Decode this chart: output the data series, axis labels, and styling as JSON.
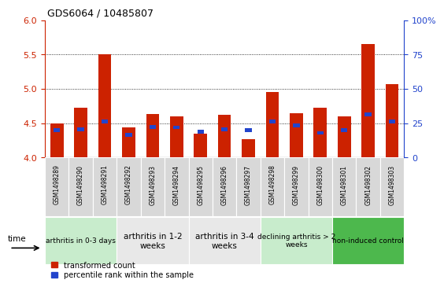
{
  "title": "GDS6064 / 10485807",
  "samples": [
    "GSM1498289",
    "GSM1498290",
    "GSM1498291",
    "GSM1498292",
    "GSM1498293",
    "GSM1498294",
    "GSM1498295",
    "GSM1498296",
    "GSM1498297",
    "GSM1498298",
    "GSM1498299",
    "GSM1498300",
    "GSM1498301",
    "GSM1498302",
    "GSM1498303"
  ],
  "red_values": [
    4.5,
    4.72,
    5.5,
    4.44,
    4.63,
    4.6,
    4.35,
    4.62,
    4.26,
    4.96,
    4.65,
    4.72,
    4.6,
    5.65,
    5.07
  ],
  "blue_values": [
    4.37,
    4.38,
    4.5,
    4.3,
    4.42,
    4.41,
    4.35,
    4.38,
    4.37,
    4.5,
    4.44,
    4.33,
    4.37,
    4.6,
    4.5
  ],
  "ylim_left": [
    4.0,
    6.0
  ],
  "yticks_left": [
    4.0,
    4.5,
    5.0,
    5.5,
    6.0
  ],
  "ylim_right": [
    0,
    100
  ],
  "yticks_right": [
    0,
    25,
    50,
    75,
    100
  ],
  "ytick_labels_right": [
    "0",
    "25",
    "50",
    "75",
    "100%"
  ],
  "groups": [
    {
      "label": "arthritis in 0-3 days",
      "indices": [
        0,
        1,
        2
      ],
      "color": "#c8eccc",
      "fontsize": 6.5
    },
    {
      "label": "arthritis in 1-2\nweeks",
      "indices": [
        3,
        4,
        5
      ],
      "color": "#e8e8e8",
      "fontsize": 7.5
    },
    {
      "label": "arthritis in 3-4\nweeks",
      "indices": [
        6,
        7,
        8
      ],
      "color": "#e8e8e8",
      "fontsize": 7.5
    },
    {
      "label": "declining arthritis > 2\nweeks",
      "indices": [
        9,
        10,
        11
      ],
      "color": "#c8eccc",
      "fontsize": 6.5
    },
    {
      "label": "non-induced control",
      "indices": [
        12,
        13,
        14
      ],
      "color": "#4db84d",
      "fontsize": 6.5
    }
  ],
  "bar_color_red": "#cc2200",
  "bar_color_blue": "#2244cc",
  "bar_width": 0.55,
  "tick_color_left": "#cc2200",
  "tick_color_right": "#2244cc",
  "legend_red": "transformed count",
  "legend_blue": "percentile rank within the sample",
  "time_label": "time"
}
